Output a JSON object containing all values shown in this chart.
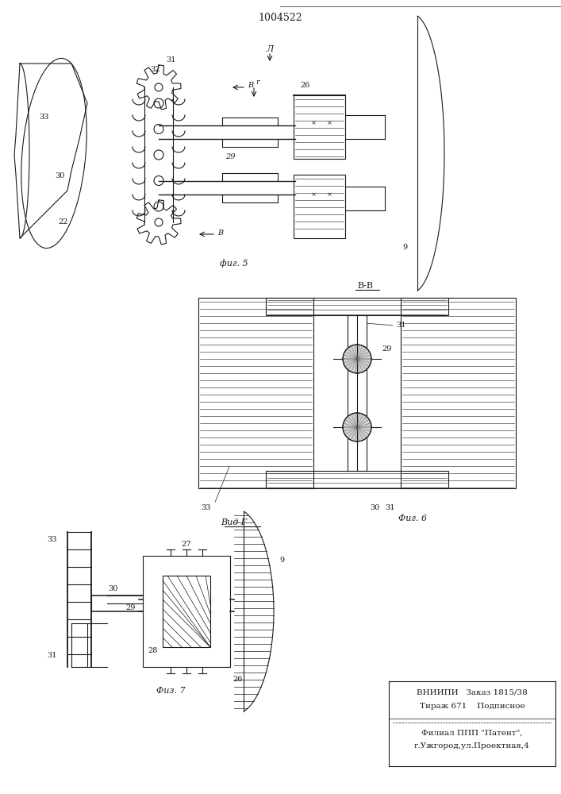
{
  "title": "1004522",
  "bg_color": "#ffffff",
  "line_color": "#1a1a1a",
  "fig5_label": "фиг. 5",
  "fig6_label": "Фиг. 6",
  "fig7_label": "Физ. 7",
  "section_bb": "В-В",
  "view_g": "Вид Г"
}
